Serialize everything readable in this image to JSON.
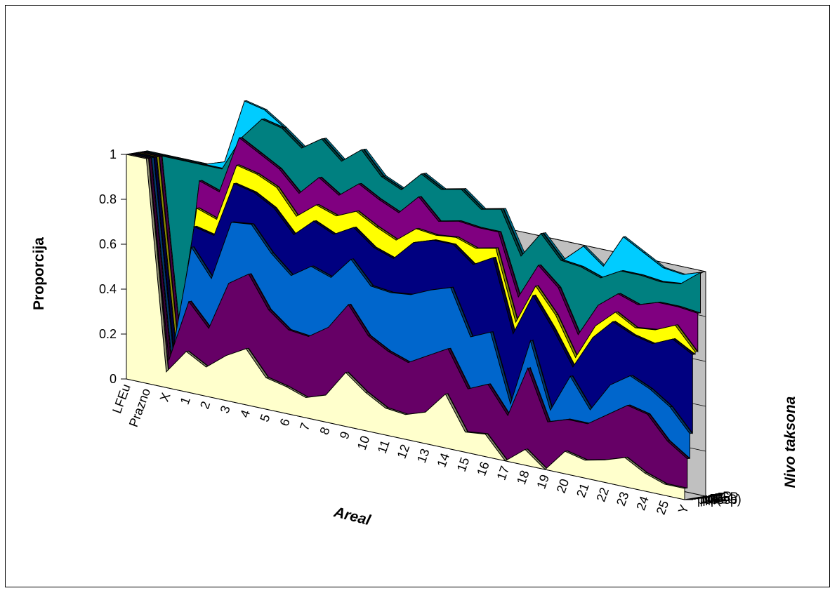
{
  "chart_data": {
    "type": "area",
    "style": "3d-stacked-area",
    "ylabel": "Proporcija",
    "xlabel": "Areal",
    "zlabel": "Nivo taksona",
    "ylim": [
      0,
      1
    ],
    "yticks": [
      "0",
      "0.2",
      "0.4",
      "0.6",
      "0.8",
      "1"
    ],
    "categories": [
      "LFEu",
      "Prazno",
      "X",
      "1",
      "2",
      "3",
      "4",
      "5",
      "6",
      "7",
      "8",
      "9",
      "10",
      "11",
      "12",
      "13",
      "14",
      "15",
      "16",
      "17",
      "18",
      "19",
      "20",
      "21",
      "22",
      "23",
      "24",
      "25",
      "Y"
    ],
    "series_labels": [
      "pspssp",
      "pG(sG)",
      "pF",
      "pO",
      "pC",
      "pP",
      "pGP",
      "pR"
    ],
    "series": [
      {
        "name": "pspssp",
        "color": "#FFFFCC",
        "values": [
          1,
          1,
          0.07,
          0.18,
          0.13,
          0.2,
          0.25,
          0.14,
          0.12,
          0.09,
          0.12,
          0.24,
          0.17,
          0.12,
          0.11,
          0.14,
          0.24,
          0.09,
          0.1,
          0.0,
          0.07,
          0.0,
          0.1,
          0.08,
          0.1,
          0.13,
          0.08,
          0.05,
          0.05
        ]
      },
      {
        "name": "pG(sG)",
        "color": "#660066",
        "values": [
          0,
          0,
          0.05,
          0.22,
          0.17,
          0.32,
          0.33,
          0.3,
          0.25,
          0.27,
          0.3,
          0.3,
          0.25,
          0.25,
          0.23,
          0.25,
          0.2,
          0.19,
          0.22,
          0.2,
          0.36,
          0.21,
          0.14,
          0.16,
          0.2,
          0.23,
          0.26,
          0.19,
          0.13
        ]
      },
      {
        "name": "pF",
        "color": "#0066CC",
        "values": [
          0,
          0,
          0.01,
          0.24,
          0.22,
          0.27,
          0.22,
          0.25,
          0.24,
          0.31,
          0.22,
          0.2,
          0.22,
          0.26,
          0.3,
          0.29,
          0.27,
          0.23,
          0.23,
          0.05,
          0.12,
          0.05,
          0.19,
          0.06,
          0.13,
          0.13,
          0.11,
          0.15,
          0.11
        ]
      },
      {
        "name": "pO",
        "color": "#000080",
        "values": [
          0,
          0,
          0.02,
          0.09,
          0.19,
          0.17,
          0.14,
          0.2,
          0.18,
          0.2,
          0.19,
          0.14,
          0.17,
          0.15,
          0.23,
          0.22,
          0.19,
          0.32,
          0.33,
          0.31,
          0.2,
          0.36,
          0.04,
          0.32,
          0.28,
          0.18,
          0.2,
          0.3,
          0.35
        ]
      },
      {
        "name": "pC",
        "color": "#FFFF00",
        "values": [
          0,
          0,
          0.0,
          0.08,
          0.07,
          0.08,
          0.08,
          0.09,
          0.08,
          0.07,
          0.08,
          0.07,
          0.09,
          0.08,
          0.06,
          0.02,
          0.03,
          0.07,
          0.04,
          0.05,
          0.04,
          0.06,
          0.04,
          0.05,
          0.04,
          0.03,
          0.06,
          0.06,
          0.01
        ]
      },
      {
        "name": "pP",
        "color": "#800080",
        "values": [
          0,
          0,
          0.0,
          0.12,
          0.12,
          0.12,
          0.09,
          0.08,
          0.1,
          0.12,
          0.09,
          0.12,
          0.12,
          0.12,
          0.14,
          0.06,
          0.07,
          0.09,
          0.07,
          0.11,
          0.09,
          0.12,
          0.1,
          0.09,
          0.08,
          0.1,
          0.12,
          0.08,
          0.17
        ]
      },
      {
        "name": "pGP",
        "color": "#008080",
        "values": [
          0,
          0,
          0.85,
          0.07,
          0.1,
          0.0,
          0.15,
          0.18,
          0.2,
          0.17,
          0.15,
          0.15,
          0.1,
          0.1,
          0.1,
          0.14,
          0.14,
          0.08,
          0.1,
          0.18,
          0.14,
          0.12,
          0.3,
          0.12,
          0.1,
          0.13,
          0.09,
          0.1,
          0.18
        ]
      },
      {
        "name": "pR",
        "color": "#00CCFF",
        "values": [
          0,
          0,
          0.0,
          0.0,
          0.03,
          0.16,
          0.04,
          0.0,
          0.0,
          0.0,
          0.0,
          0.0,
          0.0,
          0.0,
          0.0,
          0.0,
          0.0,
          0.0,
          0.0,
          0.0,
          0.0,
          0.0,
          0.09,
          0.05,
          0.15,
          0.1,
          0.06,
          0.04,
          0.0
        ]
      }
    ]
  }
}
